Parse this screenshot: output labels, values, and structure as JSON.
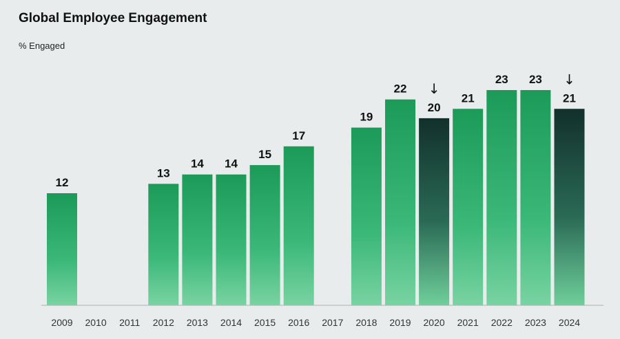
{
  "chart_data": {
    "type": "bar",
    "title": "Global Employee Engagement",
    "ylabel": "% Engaged",
    "xlabel": "",
    "categories": [
      "2009",
      "2010",
      "2011",
      "2012",
      "2013",
      "2014",
      "2015",
      "2016",
      "2017",
      "2018",
      "2019",
      "2020",
      "2021",
      "2022",
      "2023",
      "2024"
    ],
    "values": [
      12,
      null,
      null,
      13,
      14,
      14,
      15,
      17,
      null,
      19,
      22,
      20,
      21,
      23,
      23,
      21
    ],
    "value_labels": [
      "12",
      "",
      "",
      "13",
      "14",
      "14",
      "15",
      "17",
      "",
      "19",
      "22",
      "20",
      "21",
      "23",
      "23",
      "21"
    ],
    "declines": [
      false,
      false,
      false,
      false,
      false,
      false,
      false,
      false,
      false,
      false,
      false,
      true,
      false,
      false,
      false,
      true
    ],
    "decline_marker": "↓",
    "ylim": [
      0,
      23
    ],
    "grid": false,
    "colors": {
      "bar": "#1f9e5c",
      "bar_light": "#2fb872",
      "decline_bar": "#15332e",
      "baseline": "#bfc5c4"
    }
  }
}
